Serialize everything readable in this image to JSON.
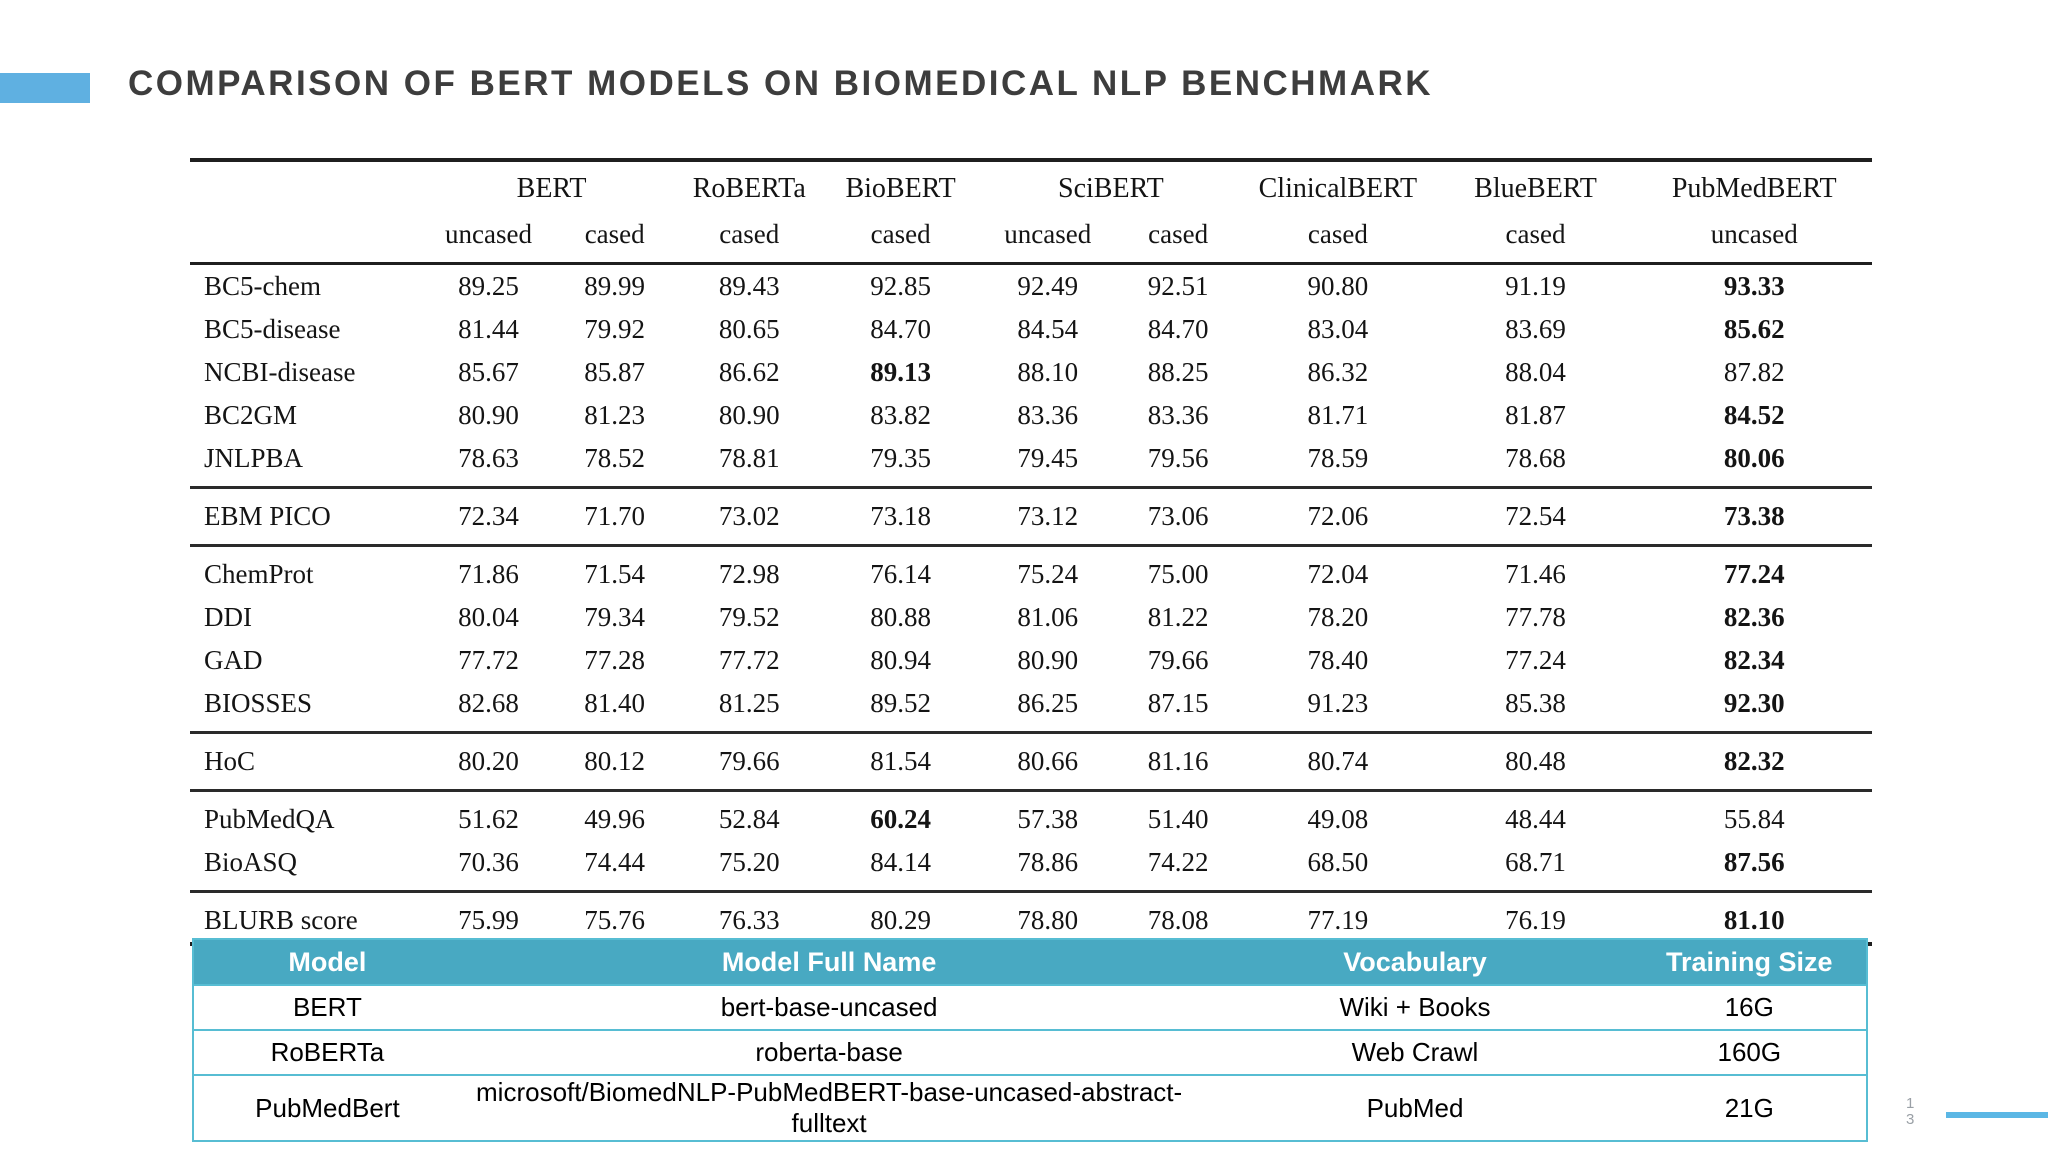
{
  "slide": {
    "title": "COMPARISON OF BERT MODELS ON BIOMEDICAL NLP BENCHMARK",
    "page_number_top": "1",
    "page_number_bottom": "3",
    "accent_color": "#5fb0e1",
    "teal_header_color": "#48a9c2"
  },
  "benchmark_table": {
    "col_widths": [
      "14%",
      "7.5%",
      "7.5%",
      "8.5%",
      "9.5%",
      "8%",
      "7.5%",
      "11.5%",
      "12%",
      "14%"
    ],
    "groups": [
      {
        "name": "",
        "subs": [
          ""
        ]
      },
      {
        "name": "BERT",
        "subs": [
          "uncased",
          "cased"
        ]
      },
      {
        "name": "RoBERTa",
        "subs": [
          "cased"
        ]
      },
      {
        "name": "BioBERT",
        "subs": [
          "cased"
        ]
      },
      {
        "name": "SciBERT",
        "subs": [
          "uncased",
          "cased"
        ]
      },
      {
        "name": "ClinicalBERT",
        "subs": [
          "cased"
        ]
      },
      {
        "name": "BlueBERT",
        "subs": [
          "cased"
        ]
      },
      {
        "name": "PubMedBERT",
        "subs": [
          "uncased"
        ]
      }
    ],
    "rows": [
      {
        "task": "BC5-chem",
        "values": [
          "89.25",
          "89.99",
          "89.43",
          "92.85",
          "92.49",
          "92.51",
          "90.80",
          "91.19",
          "93.33"
        ],
        "bold": [
          8
        ]
      },
      {
        "task": "BC5-disease",
        "values": [
          "81.44",
          "79.92",
          "80.65",
          "84.70",
          "84.54",
          "84.70",
          "83.04",
          "83.69",
          "85.62"
        ],
        "bold": [
          8
        ]
      },
      {
        "task": "NCBI-disease",
        "values": [
          "85.67",
          "85.87",
          "86.62",
          "89.13",
          "88.10",
          "88.25",
          "86.32",
          "88.04",
          "87.82"
        ],
        "bold": [
          3
        ]
      },
      {
        "task": "BC2GM",
        "values": [
          "80.90",
          "81.23",
          "80.90",
          "83.82",
          "83.36",
          "83.36",
          "81.71",
          "81.87",
          "84.52"
        ],
        "bold": [
          8
        ]
      },
      {
        "task": "JNLPBA",
        "values": [
          "78.63",
          "78.52",
          "78.81",
          "79.35",
          "79.45",
          "79.56",
          "78.59",
          "78.68",
          "80.06"
        ],
        "bold": [
          8
        ],
        "rule_after": true
      },
      {
        "task": "EBM PICO",
        "values": [
          "72.34",
          "71.70",
          "73.02",
          "73.18",
          "73.12",
          "73.06",
          "72.06",
          "72.54",
          "73.38"
        ],
        "bold": [
          8
        ],
        "rule_after": true
      },
      {
        "task": "ChemProt",
        "values": [
          "71.86",
          "71.54",
          "72.98",
          "76.14",
          "75.24",
          "75.00",
          "72.04",
          "71.46",
          "77.24"
        ],
        "bold": [
          8
        ]
      },
      {
        "task": "DDI",
        "values": [
          "80.04",
          "79.34",
          "79.52",
          "80.88",
          "81.06",
          "81.22",
          "78.20",
          "77.78",
          "82.36"
        ],
        "bold": [
          8
        ]
      },
      {
        "task": "GAD",
        "values": [
          "77.72",
          "77.28",
          "77.72",
          "80.94",
          "80.90",
          "79.66",
          "78.40",
          "77.24",
          "82.34"
        ],
        "bold": [
          8
        ]
      },
      {
        "task": "BIOSSES",
        "values": [
          "82.68",
          "81.40",
          "81.25",
          "89.52",
          "86.25",
          "87.15",
          "91.23",
          "85.38",
          "92.30"
        ],
        "bold": [
          8
        ],
        "rule_after": true
      },
      {
        "task": "HoC",
        "values": [
          "80.20",
          "80.12",
          "79.66",
          "81.54",
          "80.66",
          "81.16",
          "80.74",
          "80.48",
          "82.32"
        ],
        "bold": [
          8
        ],
        "rule_after": true
      },
      {
        "task": "PubMedQA",
        "values": [
          "51.62",
          "49.96",
          "52.84",
          "60.24",
          "57.38",
          "51.40",
          "49.08",
          "48.44",
          "55.84"
        ],
        "bold": [
          3
        ]
      },
      {
        "task": "BioASQ",
        "values": [
          "70.36",
          "74.44",
          "75.20",
          "84.14",
          "78.86",
          "74.22",
          "68.50",
          "68.71",
          "87.56"
        ],
        "bold": [
          8
        ],
        "rule_after": true
      },
      {
        "task": "BLURB score",
        "values": [
          "75.99",
          "75.76",
          "76.33",
          "80.29",
          "78.80",
          "78.08",
          "77.19",
          "76.19",
          "81.10"
        ],
        "bold": [
          8
        ]
      }
    ]
  },
  "model_table": {
    "headers": [
      "Model",
      "Model Full Name",
      "Vocabulary",
      "Training Size"
    ],
    "col_widths": [
      "16%",
      "44%",
      "26%",
      "14%"
    ],
    "rows": [
      [
        "BERT",
        "bert-base-uncased",
        "Wiki + Books",
        "16G"
      ],
      [
        "RoBERTa",
        "roberta-base",
        "Web Crawl",
        "160G"
      ],
      [
        "PubMedBert",
        "microsoft/BiomedNLP-PubMedBERT-base-uncased-abstract-fulltext",
        "PubMed",
        "21G"
      ]
    ]
  }
}
